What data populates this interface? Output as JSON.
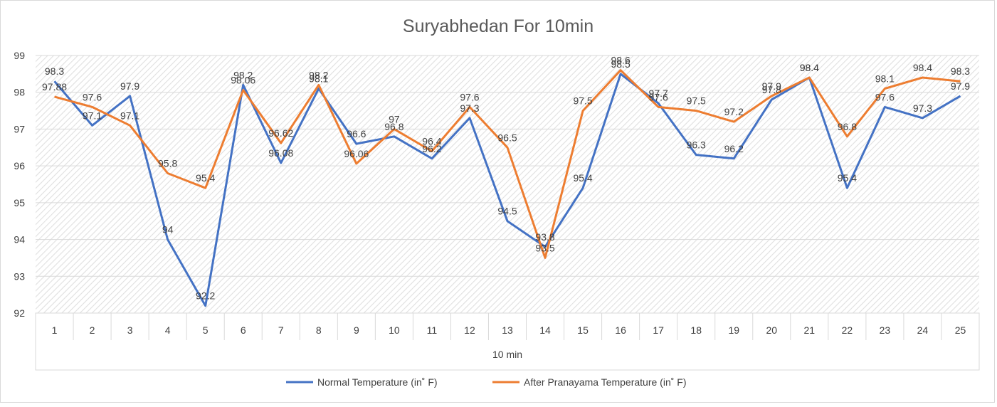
{
  "chart_data": {
    "type": "line",
    "title": "Suryabhedan For 10min",
    "xlabel": "10 min",
    "ylabel": "",
    "categories": [
      "1",
      "2",
      "3",
      "4",
      "5",
      "6",
      "7",
      "8",
      "9",
      "10",
      "11",
      "12",
      "13",
      "14",
      "15",
      "16",
      "17",
      "18",
      "19",
      "20",
      "21",
      "22",
      "23",
      "24",
      "25"
    ],
    "ylim": [
      92,
      99
    ],
    "yticks": [
      92,
      93,
      94,
      95,
      96,
      97,
      98,
      99
    ],
    "grid": true,
    "legend": "bottom",
    "series": [
      {
        "name": "Normal Temperature  (in˚ F)",
        "color": "#4472C4",
        "values": [
          98.3,
          97.1,
          97.9,
          94,
          92.2,
          98.2,
          96.08,
          98.1,
          96.6,
          96.8,
          96.2,
          97.3,
          94.5,
          93.8,
          95.4,
          98.5,
          97.7,
          96.3,
          96.2,
          97.8,
          98.4,
          95.4,
          97.6,
          97.3,
          97.9
        ],
        "labels": [
          "98.3",
          "97.1",
          "97.9",
          "94",
          "92.2",
          "98.2",
          "96.08",
          "98.1",
          "96.6",
          "96.8",
          "96.2",
          "97.3",
          "94.5",
          "93.8",
          "95.4",
          "98.5",
          "97.7",
          "96.3",
          "96.2",
          "97.8",
          "98.4",
          "95.4",
          "97.6",
          "97.3",
          "97.9"
        ]
      },
      {
        "name": "After Pranayama Temperature (in˚ F)",
        "color": "#ED7D31",
        "values": [
          97.88,
          97.6,
          97.1,
          95.8,
          95.4,
          98.06,
          96.62,
          98.2,
          96.06,
          97,
          96.4,
          97.6,
          96.5,
          93.5,
          97.5,
          98.6,
          97.6,
          97.5,
          97.2,
          97.9,
          98.4,
          96.8,
          98.1,
          98.4,
          98.3
        ],
        "labels": [
          "97.88",
          "97.6",
          "97.1",
          "95.8",
          "95.4",
          "98.06",
          "96.62",
          "98.2",
          "96.06",
          "97",
          "96.4",
          "97.6",
          "96.5",
          "93.5",
          "97.5",
          "98.6",
          "97.6",
          "97.5",
          "97.2",
          "97.9",
          "98.4",
          "96.8",
          "98.1",
          "98.4",
          "98.3"
        ]
      }
    ]
  }
}
